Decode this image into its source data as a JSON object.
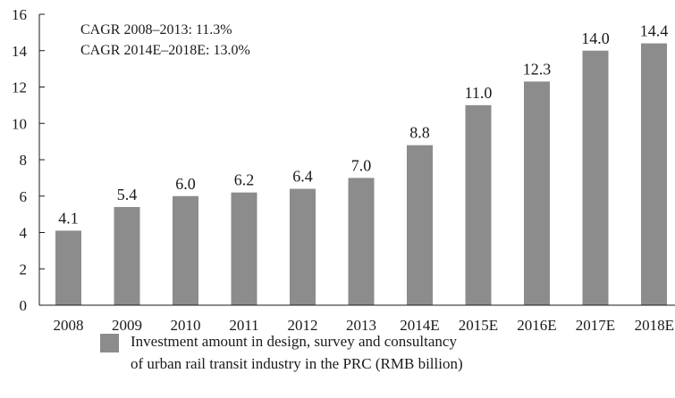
{
  "chart_data": {
    "type": "bar",
    "categories": [
      "2008",
      "2009",
      "2010",
      "2011",
      "2012",
      "2013",
      "2014E",
      "2015E",
      "2016E",
      "2017E",
      "2018E"
    ],
    "series": [
      {
        "name": "Investment amount in design, survey and consultancy of urban rail transit industry in the PRC (RMB billion)",
        "values": [
          4.1,
          5.4,
          6.0,
          6.2,
          6.4,
          7.0,
          8.8,
          11.0,
          12.3,
          14.0,
          14.4
        ]
      }
    ],
    "value_labels": [
      "4.1",
      "5.4",
      "6.0",
      "6.2",
      "6.4",
      "7.0",
      "8.8",
      "11.0",
      "12.3",
      "14.0",
      "14.4"
    ],
    "ylim": [
      0,
      16
    ],
    "yticks": [
      0,
      2,
      4,
      6,
      8,
      10,
      12,
      14,
      16
    ],
    "grid": false,
    "legend_position": "bottom",
    "bar_color": "#8c8c8c",
    "annotations": [
      "CAGR 2008–2013: 11.3%",
      "CAGR 2014E–2018E: 13.0%"
    ]
  },
  "legend": {
    "line1": "Investment amount in design, survey and consultancy",
    "line2": "of urban rail transit industry in the PRC (RMB billion)"
  }
}
